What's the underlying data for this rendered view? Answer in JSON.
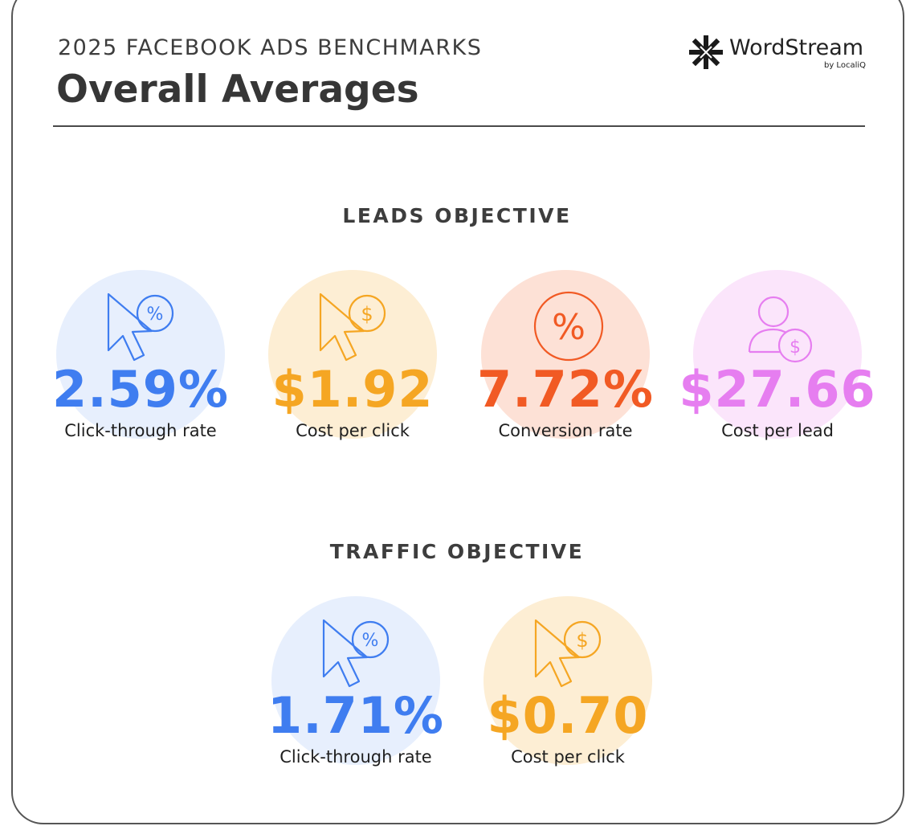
{
  "header": {
    "kicker": "2025 FACEBOOK ADS BENCHMARKS",
    "title": "Overall Averages"
  },
  "logo": {
    "icon": "wordstream-burst-icon",
    "name": "WordStream",
    "byline": "by LocaliQ"
  },
  "colors": {
    "blue": "#3f7df0",
    "blue_bg": "#e7effd",
    "orange": "#f5a623",
    "orange_bg": "#fdeed4",
    "red": "#f15a24",
    "red_bg": "#fde1d6",
    "pink": "#e67ef0",
    "pink_bg": "#fbe5fb"
  },
  "leads": {
    "title": "LEADS OBJECTIVE",
    "metrics": [
      {
        "value": "2.59%",
        "label": "Click-through rate",
        "icon": "cursor-percent-icon"
      },
      {
        "value": "$1.92",
        "label": "Cost per click",
        "icon": "cursor-dollar-icon"
      },
      {
        "value": "7.72%",
        "label": "Conversion rate",
        "icon": "percent-circle-icon"
      },
      {
        "value": "$27.66",
        "label": "Cost per lead",
        "icon": "user-dollar-icon"
      }
    ]
  },
  "traffic": {
    "title": "TRAFFIC OBJECTIVE",
    "metrics": [
      {
        "value": "1.71%",
        "label": "Click-through rate",
        "icon": "cursor-percent-icon"
      },
      {
        "value": "$0.70",
        "label": "Cost per click",
        "icon": "cursor-dollar-icon"
      }
    ]
  }
}
